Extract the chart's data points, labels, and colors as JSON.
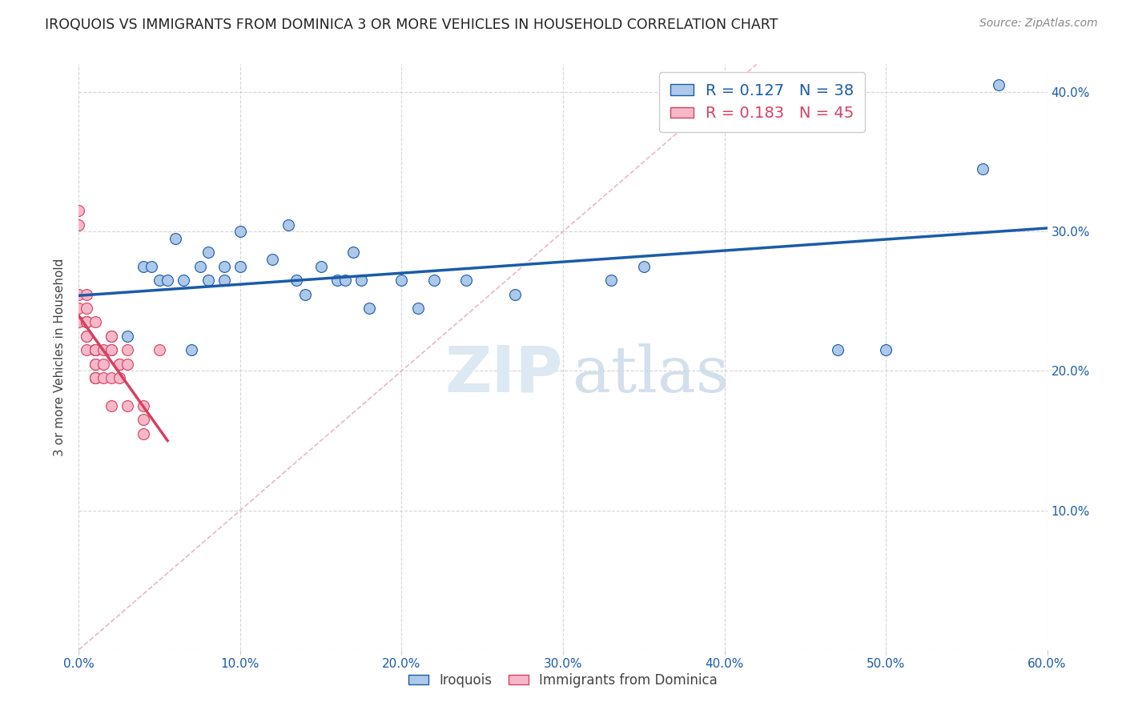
{
  "title": "IROQUOIS VS IMMIGRANTS FROM DOMINICA 3 OR MORE VEHICLES IN HOUSEHOLD CORRELATION CHART",
  "source": "Source: ZipAtlas.com",
  "ylabel": "3 or more Vehicles in Household",
  "xlim": [
    0.0,
    0.6
  ],
  "ylim": [
    0.0,
    0.42
  ],
  "xticks": [
    0.0,
    0.1,
    0.2,
    0.3,
    0.4,
    0.5,
    0.6
  ],
  "yticks": [
    0.0,
    0.1,
    0.2,
    0.3,
    0.4
  ],
  "xticklabels": [
    "0.0%",
    "10.0%",
    "20.0%",
    "30.0%",
    "40.0%",
    "50.0%",
    "60.0%"
  ],
  "right_yticklabels": [
    "",
    "10.0%",
    "20.0%",
    "30.0%",
    "40.0%"
  ],
  "R_iroquois": 0.127,
  "N_iroquois": 38,
  "R_dominica": 0.183,
  "N_dominica": 45,
  "color_iroquois": "#adc8e8",
  "color_dominica": "#f5b8c8",
  "line_color_iroquois": "#1a5ca8",
  "line_color_dominica": "#d84060",
  "diagonal_color": "#e8b8c0",
  "iroquois_x": [
    0.02,
    0.02,
    0.03,
    0.04,
    0.045,
    0.05,
    0.055,
    0.06,
    0.065,
    0.07,
    0.075,
    0.08,
    0.08,
    0.09,
    0.09,
    0.1,
    0.1,
    0.12,
    0.13,
    0.135,
    0.14,
    0.15,
    0.16,
    0.165,
    0.17,
    0.175,
    0.18,
    0.2,
    0.21,
    0.22,
    0.24,
    0.27,
    0.33,
    0.35,
    0.47,
    0.5,
    0.56,
    0.57
  ],
  "iroquois_y": [
    0.215,
    0.225,
    0.225,
    0.275,
    0.275,
    0.265,
    0.265,
    0.295,
    0.265,
    0.215,
    0.275,
    0.265,
    0.285,
    0.265,
    0.275,
    0.275,
    0.3,
    0.28,
    0.305,
    0.265,
    0.255,
    0.275,
    0.265,
    0.265,
    0.285,
    0.265,
    0.245,
    0.265,
    0.245,
    0.265,
    0.265,
    0.255,
    0.265,
    0.275,
    0.215,
    0.215,
    0.345,
    0.405
  ],
  "dominica_x": [
    0.0,
    0.0,
    0.0,
    0.0,
    0.0,
    0.005,
    0.005,
    0.005,
    0.005,
    0.005,
    0.005,
    0.005,
    0.005,
    0.005,
    0.01,
    0.01,
    0.01,
    0.01,
    0.01,
    0.01,
    0.01,
    0.01,
    0.01,
    0.01,
    0.01,
    0.01,
    0.01,
    0.01,
    0.015,
    0.015,
    0.015,
    0.02,
    0.02,
    0.02,
    0.02,
    0.025,
    0.025,
    0.025,
    0.03,
    0.03,
    0.03,
    0.04,
    0.04,
    0.04,
    0.05
  ],
  "dominica_y": [
    0.235,
    0.245,
    0.255,
    0.305,
    0.315,
    0.215,
    0.225,
    0.225,
    0.235,
    0.235,
    0.235,
    0.235,
    0.245,
    0.255,
    0.195,
    0.195,
    0.195,
    0.195,
    0.205,
    0.205,
    0.215,
    0.215,
    0.215,
    0.215,
    0.215,
    0.215,
    0.215,
    0.235,
    0.195,
    0.205,
    0.215,
    0.175,
    0.195,
    0.215,
    0.225,
    0.195,
    0.205,
    0.205,
    0.175,
    0.205,
    0.215,
    0.155,
    0.165,
    0.175,
    0.215
  ]
}
